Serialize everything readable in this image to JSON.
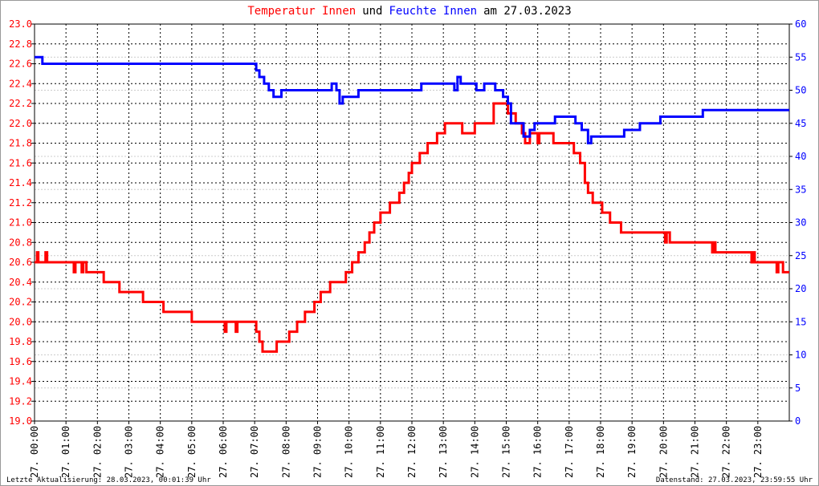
{
  "chart_data": {
    "type": "line",
    "title": [
      {
        "text": "Temperatur Innen",
        "color": "#ff0000"
      },
      {
        "text": "und",
        "color": "#000000"
      },
      {
        "text": "Feuchte Innen",
        "color": "#0000ff"
      },
      {
        "text": "am 27.03.2023",
        "color": "#000000"
      }
    ],
    "footer_left": "Letzte Aktualisierung: 28.03.2023, 00:01:39 Uhr",
    "footer_right": "Datenstand: 27.03.2023, 23:59:55 Uhr",
    "step": true,
    "grid": true,
    "xlim": [
      0,
      24
    ],
    "xticks": [
      {
        "value": 0,
        "label": "27. 00:00"
      },
      {
        "value": 1,
        "label": "27. 01:00"
      },
      {
        "value": 2,
        "label": "27. 02:00"
      },
      {
        "value": 3,
        "label": "27. 03:00"
      },
      {
        "value": 4,
        "label": "27. 04:00"
      },
      {
        "value": 5,
        "label": "27. 05:00"
      },
      {
        "value": 6,
        "label": "27. 06:00"
      },
      {
        "value": 7,
        "label": "27. 07:00"
      },
      {
        "value": 8,
        "label": "27. 08:00"
      },
      {
        "value": 9,
        "label": "27. 09:00"
      },
      {
        "value": 10,
        "label": "27. 10:00"
      },
      {
        "value": 11,
        "label": "27. 11:00"
      },
      {
        "value": 12,
        "label": "27. 12:00"
      },
      {
        "value": 13,
        "label": "27. 13:00"
      },
      {
        "value": 14,
        "label": "27. 14:00"
      },
      {
        "value": 15,
        "label": "27. 15:00"
      },
      {
        "value": 16,
        "label": "27. 16:00"
      },
      {
        "value": 17,
        "label": "27. 17:00"
      },
      {
        "value": 18,
        "label": "27. 18:00"
      },
      {
        "value": 19,
        "label": "27. 19:00"
      },
      {
        "value": 20,
        "label": "27. 20:00"
      },
      {
        "value": 21,
        "label": "27. 21:00"
      },
      {
        "value": 22,
        "label": "27. 22:00"
      },
      {
        "value": 23,
        "label": "27. 23:00"
      }
    ],
    "ylim": [
      19.0,
      23.0
    ],
    "yticks": [
      {
        "value": 19.0,
        "label": "19.0"
      },
      {
        "value": 19.2,
        "label": "19.2"
      },
      {
        "value": 19.4,
        "label": "19.4"
      },
      {
        "value": 19.6,
        "label": "19.6"
      },
      {
        "value": 19.8,
        "label": "19.8"
      },
      {
        "value": 20.0,
        "label": "20.0"
      },
      {
        "value": 20.2,
        "label": "20.2"
      },
      {
        "value": 20.4,
        "label": "20.4"
      },
      {
        "value": 20.6,
        "label": "20.6"
      },
      {
        "value": 20.8,
        "label": "20.8"
      },
      {
        "value": 21.0,
        "label": "21.0"
      },
      {
        "value": 21.2,
        "label": "21.2"
      },
      {
        "value": 21.4,
        "label": "21.4"
      },
      {
        "value": 21.6,
        "label": "21.6"
      },
      {
        "value": 21.8,
        "label": "21.8"
      },
      {
        "value": 22.0,
        "label": "22.0"
      },
      {
        "value": 22.2,
        "label": "22.2"
      },
      {
        "value": 22.4,
        "label": "22.4"
      },
      {
        "value": 22.6,
        "label": "22.6"
      },
      {
        "value": 22.8,
        "label": "22.8"
      },
      {
        "value": 23.0,
        "label": "23.0"
      }
    ],
    "ycolor": "#ff0000",
    "y2lim": [
      0,
      60
    ],
    "y2ticks": [
      0,
      5,
      10,
      15,
      20,
      25,
      30,
      35,
      40,
      45,
      50,
      55,
      60
    ],
    "y2color": "#0000ff",
    "series": [
      {
        "name": "Temperatur Innen",
        "color": "#ff0000",
        "x": [
          0,
          0.08,
          0.12,
          0.35,
          0.4,
          1.25,
          1.3,
          1.5,
          1.55,
          1.65,
          2.2,
          2.7,
          3.45,
          4.1,
          5.0,
          6.05,
          6.1,
          6.4,
          6.45,
          7.05,
          7.15,
          7.25,
          7.7,
          8.1,
          8.35,
          8.6,
          8.9,
          9.1,
          9.4,
          9.9,
          10.1,
          10.3,
          10.5,
          10.65,
          10.8,
          11.0,
          11.3,
          11.6,
          11.75,
          11.9,
          12.0,
          12.25,
          12.5,
          12.8,
          13.05,
          13.6,
          14.0,
          14.6,
          15.05,
          15.3,
          15.5,
          15.6,
          15.75,
          16.0,
          16.05,
          16.5,
          17.15,
          17.35,
          17.5,
          17.6,
          17.75,
          18.05,
          18.3,
          18.65,
          20.05,
          20.1,
          20.2,
          21.55,
          21.6,
          21.65,
          22.8,
          22.85,
          22.9,
          23.6,
          23.65,
          23.8,
          24.0
        ],
        "values": [
          20.6,
          20.7,
          20.6,
          20.7,
          20.6,
          20.5,
          20.6,
          20.5,
          20.6,
          20.5,
          20.4,
          20.3,
          20.2,
          20.1,
          20.0,
          19.9,
          20.0,
          19.9,
          20.0,
          19.9,
          19.8,
          19.7,
          19.8,
          19.9,
          20.0,
          20.1,
          20.2,
          20.3,
          20.4,
          20.5,
          20.6,
          20.7,
          20.8,
          20.9,
          21.0,
          21.1,
          21.2,
          21.3,
          21.4,
          21.5,
          21.6,
          21.7,
          21.8,
          21.9,
          22.0,
          21.9,
          22.0,
          22.2,
          22.1,
          22.0,
          21.9,
          21.8,
          21.9,
          21.8,
          21.9,
          21.8,
          21.7,
          21.6,
          21.4,
          21.3,
          21.2,
          21.1,
          21.0,
          20.9,
          20.8,
          20.9,
          20.8,
          20.7,
          20.8,
          20.7,
          20.6,
          20.7,
          20.6,
          20.5,
          20.6,
          20.5,
          20.5
        ]
      },
      {
        "name": "Feuchte Innen",
        "color": "#0000ff",
        "axis": "y2",
        "x": [
          0,
          0.25,
          6.95,
          7.05,
          7.15,
          7.3,
          7.45,
          7.6,
          7.85,
          9.45,
          9.6,
          9.7,
          9.8,
          10.3,
          12.3,
          13.35,
          13.45,
          13.55,
          14.05,
          14.3,
          14.65,
          14.9,
          15.05,
          15.15,
          15.55,
          15.75,
          15.9,
          16.55,
          17.2,
          17.4,
          17.6,
          17.7,
          18.75,
          19.25,
          19.9,
          21.25,
          24
        ],
        "values": [
          55,
          54,
          54,
          53,
          52,
          51,
          50,
          49,
          50,
          51,
          50,
          48,
          49,
          50,
          51,
          50,
          52,
          51,
          50,
          51,
          50,
          49,
          48,
          45,
          43,
          44,
          45,
          46,
          45,
          44,
          42,
          43,
          44,
          45,
          46,
          47,
          47
        ]
      }
    ]
  }
}
